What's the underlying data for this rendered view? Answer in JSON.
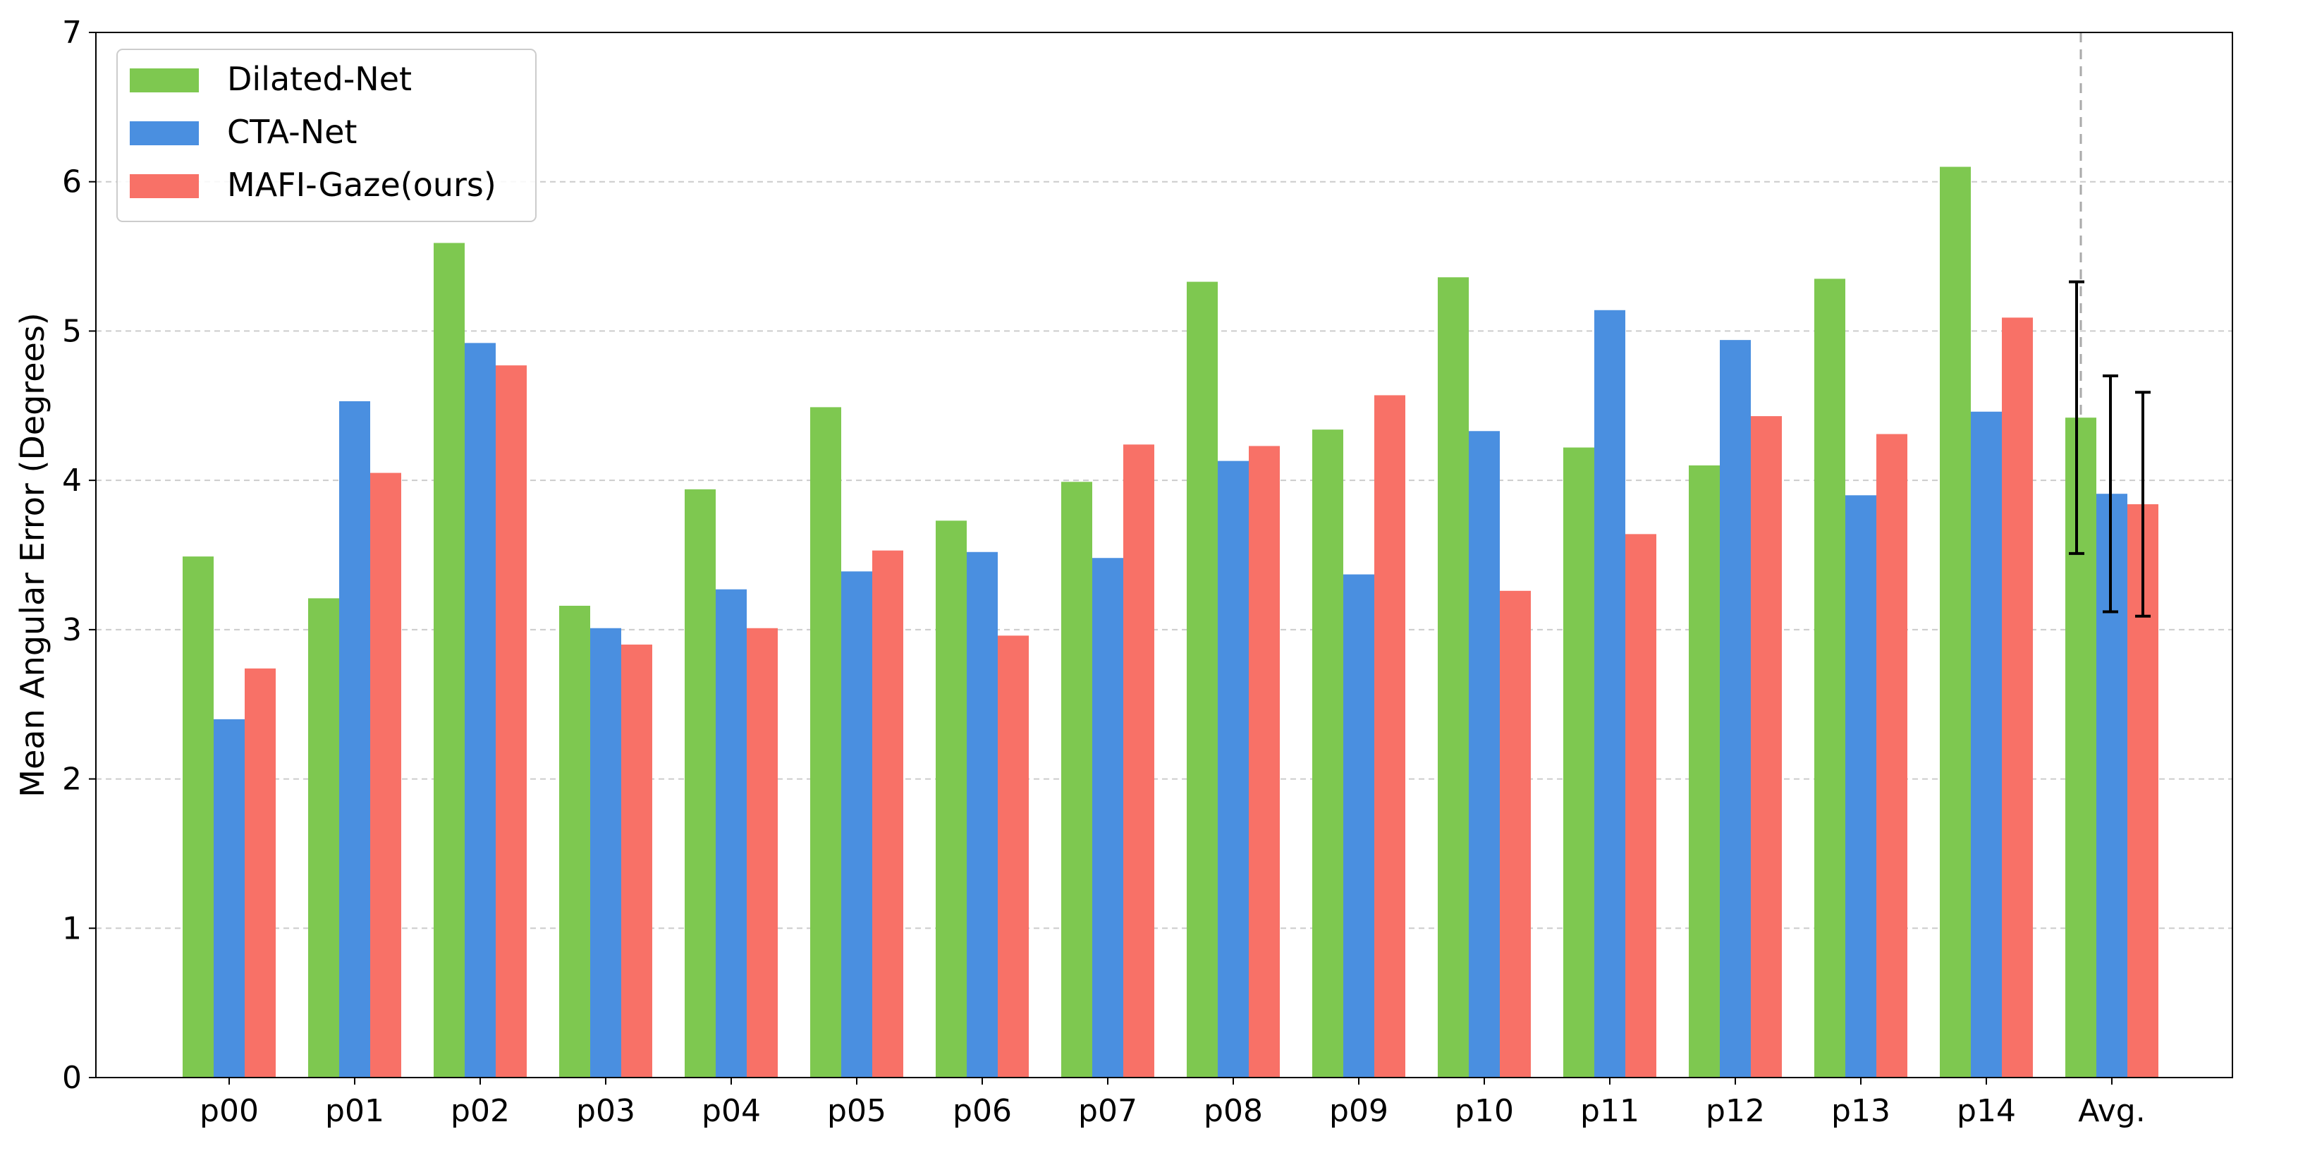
{
  "chart_data": {
    "type": "bar",
    "title": "",
    "xlabel": "",
    "ylabel": "Mean Angular Error (Degrees)",
    "ylim": [
      0,
      7
    ],
    "yticks": [
      0,
      1,
      2,
      3,
      4,
      5,
      6,
      7
    ],
    "grid": "horizontal dashed",
    "legend_position": "top-left",
    "categories": [
      "p00",
      "p01",
      "p02",
      "p03",
      "p04",
      "p05",
      "p06",
      "p07",
      "p08",
      "p09",
      "p10",
      "p11",
      "p12",
      "p13",
      "p14",
      "Avg."
    ],
    "series": [
      {
        "name": "Dilated-Net",
        "color": "#7ec850",
        "values": [
          3.49,
          3.21,
          5.59,
          3.16,
          3.94,
          4.49,
          3.73,
          3.99,
          5.33,
          4.34,
          5.36,
          4.22,
          4.1,
          5.35,
          6.1,
          4.42
        ],
        "error": [
          null,
          null,
          null,
          null,
          null,
          null,
          null,
          null,
          null,
          null,
          null,
          null,
          null,
          null,
          null,
          0.91
        ]
      },
      {
        "name": "CTA-Net",
        "color": "#4a8fe0",
        "values": [
          2.4,
          4.53,
          4.92,
          3.01,
          3.27,
          3.39,
          3.52,
          3.48,
          4.13,
          3.37,
          4.33,
          5.14,
          4.94,
          3.9,
          4.46,
          3.91
        ],
        "error": [
          null,
          null,
          null,
          null,
          null,
          null,
          null,
          null,
          null,
          null,
          null,
          null,
          null,
          null,
          null,
          0.79
        ]
      },
      {
        "name": "MAFI-Gaze(ours)",
        "color": "#f87167",
        "values": [
          2.74,
          4.05,
          4.77,
          2.9,
          3.01,
          3.53,
          2.96,
          4.24,
          4.23,
          4.57,
          3.26,
          3.64,
          4.43,
          4.31,
          5.09,
          3.84
        ],
        "error": [
          null,
          null,
          null,
          null,
          null,
          null,
          null,
          null,
          null,
          null,
          null,
          null,
          null,
          null,
          null,
          0.75
        ]
      }
    ]
  }
}
